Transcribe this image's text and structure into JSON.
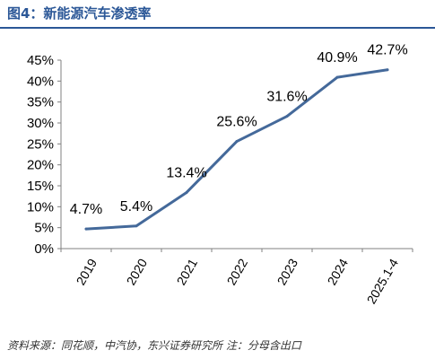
{
  "header": {
    "title": "图4：新能源汽车渗透率"
  },
  "footer": {
    "source": "资料来源：同花顺，中汽协，东兴证券研究所 注：分母含出口"
  },
  "colors": {
    "title": "#2b5797",
    "line": "#44699a",
    "axis": "#808080",
    "text": "#000000"
  },
  "chart_data": {
    "type": "line",
    "categories": [
      "2019",
      "2020",
      "2021",
      "2022",
      "2023",
      "2024",
      "2025.1-4"
    ],
    "series": [
      {
        "values": [
          4.7,
          5.4,
          13.4,
          25.6,
          31.6,
          40.9,
          42.7
        ]
      }
    ],
    "data_labels": [
      "4.7%",
      "5.4%",
      "13.4%",
      "25.6%",
      "31.6%",
      "40.9%",
      "42.7%"
    ],
    "y_ticks": [
      "0%",
      "5%",
      "10%",
      "15%",
      "20%",
      "25%",
      "30%",
      "35%",
      "40%",
      "45%"
    ],
    "ylim": [
      0,
      45
    ],
    "y_unit": "%",
    "grid": false,
    "legend": "none",
    "title": "",
    "xlabel": "",
    "ylabel": ""
  }
}
